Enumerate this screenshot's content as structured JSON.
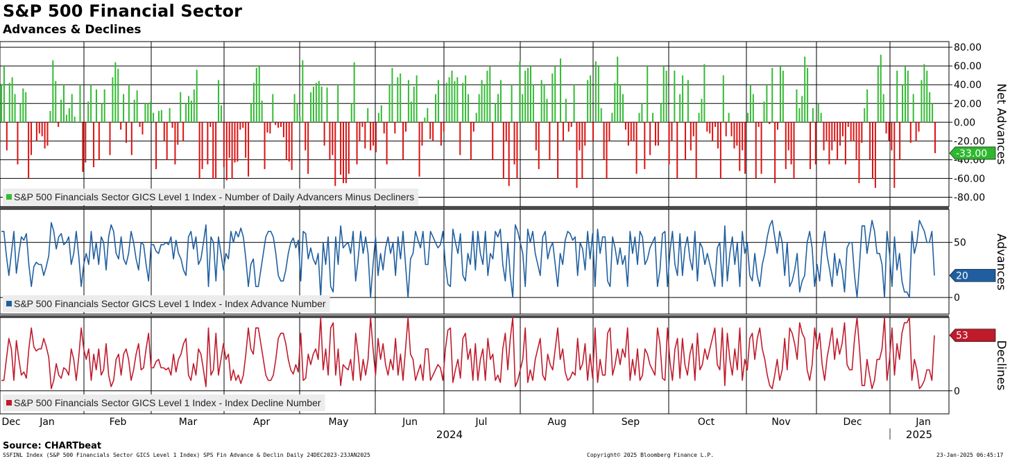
{
  "title": "S&P 500 Financial Sector",
  "subtitle": "Advances & Declines",
  "source": "Source: CHARTbeat",
  "footer_left": "SSFINL Index (S&P 500 Financials Sector GICS Level 1 Index) SPS Fin Advance & Declin  Daily 24DEC2023-23JAN2025",
  "footer_center": "Copyright© 2025 Bloomberg Finance L.P.",
  "footer_right": "23-Jan-2025 06:45:17",
  "colors": {
    "positive": "#33bb33",
    "negative": "#dd1111",
    "advances": "#1f5fa0",
    "declines": "#c01a2b"
  },
  "chart_data": [
    {
      "type": "bar",
      "name": "net-advances",
      "ylabel": "Net Advances",
      "legend": "S&P 500 Financials Sector GICS Level 1 Index - Number of Daily Advancers Minus Decliners",
      "ylim": [
        -90,
        86
      ],
      "yticks": [
        "80.00",
        "60.00",
        "40.00",
        "20.00",
        "0.00",
        "-20.00",
        "-40.00",
        "-60.00",
        "-80.00"
      ],
      "ytick_values": [
        80,
        60,
        40,
        20,
        0,
        -20,
        -40,
        -60,
        -80
      ],
      "last_value": "-33.00",
      "values": [
        40,
        60,
        -30,
        42,
        48,
        30,
        -45,
        20,
        36,
        32,
        -60,
        -35,
        0,
        -20,
        -12,
        -15,
        -28,
        -25,
        12,
        66,
        44,
        -5,
        24,
        40,
        8,
        15,
        30,
        6,
        0,
        40,
        -53,
        -43,
        22,
        40,
        -48,
        35,
        -40,
        20,
        35,
        0,
        -35,
        48,
        64,
        57,
        -8,
        30,
        -22,
        40,
        -35,
        24,
        34,
        -5,
        -13,
        20,
        20,
        22,
        10,
        -50,
        12,
        13,
        -20,
        -40,
        15,
        -6,
        -45,
        -24,
        32,
        -20,
        20,
        28,
        23,
        35,
        56,
        -60,
        -50,
        0,
        -45,
        -5,
        -60,
        -60,
        45,
        18,
        -48,
        -62,
        -38,
        -60,
        -43,
        -42,
        -8,
        -6,
        -38,
        -58,
        20,
        42,
        58,
        60,
        23,
        -50,
        -11,
        -12,
        30,
        -3,
        -6,
        -5,
        -16,
        -40,
        -42,
        -51,
        30,
        20,
        6,
        66,
        -30,
        -55,
        32,
        38,
        42,
        44,
        38,
        -25,
        37,
        -40,
        -35,
        -68,
        40,
        -56,
        -65,
        -65,
        -55,
        20,
        64,
        -45,
        -20,
        -5,
        -28,
        15,
        -30,
        -25,
        -32,
        10,
        18,
        -12,
        -45,
        40,
        58,
        -12,
        48,
        52,
        -40,
        -10,
        45,
        22,
        38,
        50,
        -58,
        -25,
        5,
        15,
        -18,
        -20,
        30,
        45,
        -25,
        -10,
        42,
        48,
        55,
        44,
        48,
        -35,
        42,
        50,
        30,
        -40,
        -10,
        10,
        30,
        45,
        40,
        55,
        60,
        -40,
        20,
        30,
        45,
        -60,
        -20,
        -68,
        40,
        -45,
        -60,
        65,
        30,
        55,
        58,
        60,
        40,
        -30,
        -50,
        45,
        40,
        25,
        -40,
        52,
        60,
        -60,
        68,
        -20,
        25,
        -10,
        -5,
        40,
        -70,
        -30,
        -60,
        -25,
        45,
        50,
        -20,
        65,
        60,
        15,
        -40,
        -60,
        -20,
        10,
        42,
        70,
        40,
        30,
        -8,
        -25,
        -20,
        -20,
        -55,
        10,
        20,
        -50,
        60,
        -35,
        10,
        -25,
        -25,
        20,
        60,
        55,
        -45,
        -20,
        55,
        -60,
        30,
        50,
        -40,
        45,
        -30,
        -15,
        -60,
        10,
        25,
        62,
        -10,
        -12,
        -20,
        -5,
        -28,
        -60,
        50,
        -15,
        10,
        -15,
        -28,
        -25,
        -52,
        -30,
        -55,
        10,
        40,
        30,
        -60,
        -5,
        -55,
        22,
        40,
        -2,
        58,
        -65,
        -8,
        60,
        55,
        -50,
        -30,
        -45,
        -60,
        35,
        15,
        28,
        70,
        58,
        -50,
        15,
        -45,
        20,
        10,
        -30,
        -20,
        -45,
        -30,
        -20,
        -40,
        -25,
        -15,
        -45,
        -5,
        -20,
        -20,
        -40,
        -65,
        -22,
        15,
        35,
        -40,
        -60,
        -70,
        60,
        72,
        30,
        -12,
        -20,
        -30,
        -70,
        55,
        -40,
        40,
        60,
        55,
        -22,
        30,
        -20,
        -10,
        45,
        62,
        55,
        32,
        20,
        -33
      ]
    },
    {
      "type": "line",
      "name": "advances",
      "ylabel": "Advances",
      "legend": "S&P 500 Financials Sector GICS Level 1 Index - Index Advance Number",
      "ylim": [
        -15,
        80
      ],
      "yticks": [
        "50",
        "0"
      ],
      "ytick_values": [
        50,
        0
      ],
      "last_value": "20",
      "values": [
        60,
        60,
        38,
        20,
        40,
        60,
        22,
        40,
        55,
        52,
        58,
        30,
        10,
        28,
        32,
        30,
        30,
        20,
        28,
        38,
        68,
        60,
        44,
        55,
        58,
        48,
        50,
        55,
        30,
        40,
        60,
        38,
        10,
        30,
        40,
        30,
        60,
        35,
        50,
        30,
        55,
        50,
        25,
        55,
        66,
        60,
        40,
        35,
        55,
        35,
        30,
        40,
        60,
        50,
        35,
        25,
        50,
        48,
        30,
        15,
        48,
        48,
        42,
        40,
        48,
        48,
        50,
        48,
        55,
        35,
        52,
        40,
        35,
        25,
        20,
        55,
        60,
        44,
        55,
        30,
        35,
        50,
        66,
        10,
        55,
        50,
        15,
        55,
        40,
        25,
        40,
        35,
        60,
        50,
        60,
        55,
        63,
        55,
        35,
        10,
        30,
        35,
        10,
        10,
        25,
        40,
        55,
        60,
        60,
        55,
        40,
        20,
        15,
        15,
        25,
        40,
        50,
        54,
        45,
        52,
        15,
        60,
        58,
        35,
        45,
        35,
        30,
        40,
        0,
        50,
        30,
        55,
        10,
        5,
        55,
        30,
        65,
        45,
        48,
        50,
        40,
        60,
        15,
        35,
        60,
        40,
        55,
        40,
        0,
        30,
        55,
        20,
        40,
        25,
        45,
        55,
        40,
        50,
        20,
        55,
        35,
        60,
        30,
        0,
        35,
        40,
        60,
        52,
        45,
        60,
        30,
        30,
        60,
        55,
        50,
        45,
        48,
        60,
        30,
        12,
        10,
        62,
        50,
        40,
        58,
        20,
        15,
        40,
        30,
        60,
        25,
        60,
        40,
        30,
        60,
        20,
        40,
        35,
        60,
        55,
        62,
        30,
        15,
        50,
        20,
        0,
        66,
        60,
        50,
        40,
        10,
        62,
        50,
        60,
        40,
        30,
        20,
        55,
        60,
        35,
        45,
        50,
        30,
        10,
        40,
        30,
        52,
        60,
        58,
        52,
        55,
        20,
        50,
        44,
        25,
        60,
        35,
        58,
        10,
        62,
        40,
        55,
        55,
        15,
        10,
        55,
        45,
        30,
        45,
        30,
        38,
        10,
        60,
        40,
        55,
        30,
        60,
        55,
        30,
        35,
        45,
        50,
        55,
        10,
        25,
        58,
        60,
        10,
        42,
        60,
        30,
        20,
        58,
        20,
        45,
        55,
        35,
        25,
        60,
        15,
        50,
        45,
        30,
        40,
        30,
        20,
        10,
        45,
        50,
        10,
        65,
        15,
        40,
        55,
        30,
        50,
        10,
        60,
        40,
        50,
        20,
        15,
        40,
        20,
        10,
        30,
        40,
        55,
        65,
        70,
        55,
        40,
        60,
        50,
        20,
        50,
        10,
        15,
        25,
        40,
        5,
        15,
        20,
        50,
        60,
        45,
        10,
        30,
        15,
        45,
        60,
        38,
        25,
        10,
        40,
        20,
        35,
        25,
        5,
        45,
        50,
        50,
        20,
        0,
        30,
        65,
        65,
        40,
        55,
        70,
        60,
        40,
        40,
        30,
        0,
        60,
        40,
        10,
        55,
        25,
        40,
        15,
        5,
        5,
        0,
        60,
        40,
        50,
        70,
        65,
        60,
        50,
        50,
        60,
        20
      ]
    },
    {
      "type": "line",
      "name": "declines",
      "ylabel": "Declines",
      "legend": "S&P 500 Financials Sector GICS Level 1 Index - Index Decline Number",
      "ylim": [
        -22,
        70
      ],
      "yticks": [
        "0"
      ],
      "ytick_values": [
        0
      ],
      "last_value": "53",
      "values": [
        10,
        10,
        30,
        50,
        40,
        10,
        48,
        30,
        15,
        18,
        12,
        40,
        60,
        42,
        38,
        40,
        40,
        50,
        42,
        32,
        2,
        10,
        26,
        15,
        12,
        22,
        20,
        15,
        40,
        30,
        10,
        32,
        60,
        40,
        30,
        40,
        10,
        35,
        20,
        40,
        15,
        20,
        45,
        15,
        4,
        10,
        30,
        35,
        15,
        35,
        40,
        30,
        10,
        20,
        35,
        45,
        20,
        22,
        40,
        55,
        22,
        22,
        28,
        30,
        22,
        22,
        20,
        22,
        15,
        35,
        18,
        30,
        35,
        45,
        50,
        15,
        10,
        26,
        15,
        40,
        35,
        20,
        4,
        60,
        15,
        20,
        55,
        15,
        30,
        45,
        30,
        35,
        10,
        20,
        10,
        15,
        7,
        15,
        35,
        60,
        40,
        35,
        60,
        60,
        45,
        30,
        15,
        10,
        10,
        15,
        30,
        50,
        55,
        55,
        45,
        30,
        20,
        16,
        25,
        18,
        55,
        10,
        12,
        35,
        25,
        35,
        40,
        30,
        70,
        20,
        40,
        15,
        60,
        65,
        15,
        40,
        5,
        25,
        22,
        20,
        30,
        10,
        55,
        35,
        10,
        30,
        15,
        30,
        70,
        40,
        15,
        50,
        30,
        45,
        25,
        15,
        30,
        20,
        50,
        15,
        35,
        10,
        40,
        70,
        35,
        30,
        10,
        18,
        25,
        10,
        40,
        40,
        10,
        15,
        20,
        25,
        22,
        10,
        40,
        58,
        60,
        8,
        20,
        30,
        12,
        50,
        55,
        30,
        40,
        10,
        45,
        10,
        30,
        40,
        10,
        50,
        30,
        35,
        10,
        15,
        8,
        40,
        55,
        20,
        50,
        70,
        4,
        10,
        20,
        30,
        60,
        8,
        20,
        10,
        30,
        40,
        50,
        15,
        10,
        35,
        25,
        20,
        40,
        60,
        30,
        40,
        18,
        10,
        12,
        18,
        15,
        50,
        20,
        26,
        45,
        10,
        35,
        12,
        60,
        8,
        30,
        15,
        15,
        55,
        60,
        15,
        25,
        40,
        25,
        40,
        32,
        60,
        10,
        30,
        15,
        40,
        10,
        15,
        40,
        35,
        25,
        20,
        15,
        60,
        45,
        12,
        10,
        60,
        28,
        10,
        40,
        50,
        12,
        50,
        25,
        15,
        35,
        45,
        10,
        55,
        20,
        25,
        40,
        30,
        40,
        50,
        60,
        25,
        20,
        60,
        5,
        55,
        30,
        15,
        40,
        20,
        60,
        10,
        30,
        20,
        50,
        55,
        30,
        50,
        60,
        40,
        30,
        15,
        5,
        2,
        15,
        30,
        10,
        20,
        50,
        20,
        60,
        55,
        45,
        30,
        65,
        55,
        50,
        20,
        10,
        25,
        60,
        40,
        55,
        25,
        10,
        32,
        45,
        60,
        30,
        50,
        35,
        45,
        65,
        25,
        20,
        20,
        50,
        70,
        40,
        5,
        5,
        30,
        15,
        2,
        10,
        30,
        30,
        40,
        70,
        10,
        30,
        60,
        15,
        45,
        30,
        55,
        65,
        65,
        70,
        10,
        30,
        20,
        2,
        5,
        10,
        20,
        20,
        10,
        53
      ]
    }
  ],
  "x_axis": {
    "months": [
      "Dec",
      "Jan",
      "Feb",
      "Mar",
      "Apr",
      "May",
      "Jun",
      "Jul",
      "Aug",
      "Sep",
      "Oct",
      "Nov",
      "Dec",
      "Jan"
    ],
    "years": [
      "2024",
      "2025"
    ],
    "range": "24DEC2023-23JAN2025"
  }
}
